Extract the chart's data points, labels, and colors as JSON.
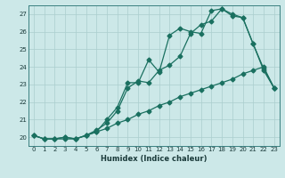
{
  "xlabel": "Humidex (Indice chaleur)",
  "bg_color": "#cce8e8",
  "line_color": "#1a7060",
  "grid_color": "#aacece",
  "xlim": [
    -0.5,
    23.5
  ],
  "ylim": [
    19.5,
    27.5
  ],
  "yticks": [
    20,
    21,
    22,
    23,
    24,
    25,
    26,
    27
  ],
  "xticks": [
    0,
    1,
    2,
    3,
    4,
    5,
    6,
    7,
    8,
    9,
    10,
    11,
    12,
    13,
    14,
    15,
    16,
    17,
    18,
    19,
    20,
    21,
    22,
    23
  ],
  "line1_x": [
    0,
    1,
    2,
    3,
    4,
    5,
    6,
    7,
    8,
    9,
    10,
    11,
    12,
    13,
    14,
    15,
    16,
    17,
    18,
    19,
    20,
    21,
    22,
    23
  ],
  "line1_y": [
    20.1,
    19.9,
    19.9,
    20.0,
    19.9,
    20.1,
    20.3,
    21.0,
    21.7,
    23.1,
    23.1,
    24.4,
    23.7,
    25.8,
    26.2,
    26.0,
    25.9,
    27.2,
    27.3,
    26.9,
    26.8,
    25.3,
    23.8,
    22.8
  ],
  "line2_x": [
    0,
    1,
    2,
    3,
    4,
    5,
    6,
    7,
    8,
    9,
    10,
    11,
    12,
    13,
    14,
    15,
    16,
    17,
    18,
    19,
    20,
    21,
    22,
    23
  ],
  "line2_y": [
    20.1,
    19.9,
    19.9,
    20.0,
    19.9,
    20.1,
    20.4,
    20.8,
    21.5,
    22.8,
    23.2,
    23.1,
    23.8,
    24.1,
    24.6,
    25.9,
    26.4,
    26.6,
    27.3,
    27.0,
    26.8,
    25.3,
    23.9,
    22.8
  ],
  "line3_x": [
    0,
    1,
    2,
    3,
    4,
    5,
    6,
    7,
    8,
    9,
    10,
    11,
    12,
    13,
    14,
    15,
    16,
    17,
    18,
    19,
    20,
    21,
    22,
    23
  ],
  "line3_y": [
    20.1,
    19.9,
    19.9,
    19.9,
    19.9,
    20.1,
    20.3,
    20.5,
    20.8,
    21.0,
    21.3,
    21.5,
    21.8,
    22.0,
    22.3,
    22.5,
    22.7,
    22.9,
    23.1,
    23.3,
    23.6,
    23.8,
    24.0,
    22.8
  ]
}
